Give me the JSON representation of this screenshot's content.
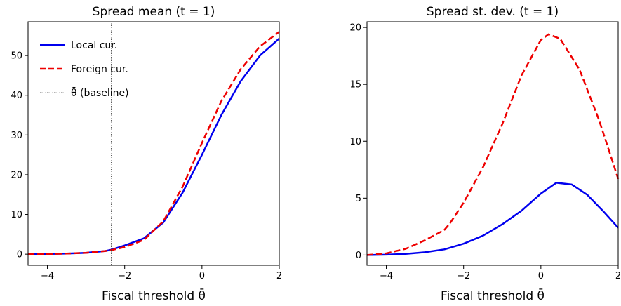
{
  "chart_data": [
    {
      "type": "line",
      "title": "Spread mean (t = 1)",
      "xlabel": "Fiscal threshold θ̄",
      "ylabel": "",
      "xlim": [
        -4.5,
        2.0
      ],
      "ylim": [
        -2.8,
        58.5
      ],
      "xticks": [
        -4,
        -2,
        0,
        2
      ],
      "xtick_labels": [
        "−4",
        "−2",
        "0",
        "2"
      ],
      "yticks": [
        0,
        10,
        20,
        30,
        40,
        50
      ],
      "ytick_labels": [
        "0",
        "10",
        "20",
        "30",
        "40",
        "50"
      ],
      "vline": -2.35,
      "legend": {
        "placement": "upper-left",
        "entries": [
          "Local cur.",
          "Foreign cur.",
          "θ̄ (baseline)"
        ]
      },
      "series": [
        {
          "name": "Local cur.",
          "color": "#0000ee",
          "style": "solid",
          "x": [
            -4.5,
            -4.0,
            -3.5,
            -3.0,
            -2.5,
            -2.35,
            -2.0,
            -1.5,
            -1.0,
            -0.5,
            0.0,
            0.5,
            1.0,
            1.5,
            2.0
          ],
          "y": [
            0.0,
            0.05,
            0.15,
            0.35,
            0.8,
            1.1,
            2.2,
            4.0,
            8.0,
            15.5,
            25.0,
            35.0,
            43.5,
            50.0,
            54.3
          ]
        },
        {
          "name": "Foreign cur.",
          "color": "#ee0000",
          "style": "dashed",
          "x": [
            -4.5,
            -4.0,
            -3.5,
            -3.0,
            -2.5,
            -2.35,
            -2.0,
            -1.5,
            -1.0,
            -0.5,
            0.0,
            0.5,
            1.0,
            1.5,
            2.0
          ],
          "y": [
            0.0,
            0.05,
            0.15,
            0.35,
            0.8,
            1.0,
            1.8,
            3.6,
            8.3,
            17.0,
            28.0,
            38.5,
            46.5,
            52.3,
            56.0
          ]
        }
      ]
    },
    {
      "type": "line",
      "title": "Spread st. dev. (t = 1)",
      "xlabel": "Fiscal threshold θ̄",
      "ylabel": "",
      "xlim": [
        -4.5,
        2.0
      ],
      "ylim": [
        -0.9,
        20.5
      ],
      "xticks": [
        -4,
        -2,
        0,
        2
      ],
      "xtick_labels": [
        "−4",
        "−2",
        "0",
        "2"
      ],
      "yticks": [
        0,
        5,
        10,
        15,
        20
      ],
      "ytick_labels": [
        "0",
        "5",
        "10",
        "15",
        "20"
      ],
      "vline": -2.35,
      "series": [
        {
          "name": "Local cur.",
          "color": "#0000ee",
          "style": "solid",
          "x": [
            -4.5,
            -4.0,
            -3.5,
            -3.0,
            -2.5,
            -2.35,
            -2.0,
            -1.5,
            -1.0,
            -0.5,
            0.0,
            0.4,
            0.8,
            1.2,
            1.6,
            2.0
          ],
          "y": [
            0.0,
            0.03,
            0.1,
            0.25,
            0.5,
            0.65,
            1.0,
            1.7,
            2.7,
            3.9,
            5.4,
            6.35,
            6.2,
            5.3,
            3.9,
            2.4
          ]
        },
        {
          "name": "Foreign cur.",
          "color": "#ee0000",
          "style": "dashed",
          "x": [
            -4.5,
            -4.0,
            -3.5,
            -3.0,
            -2.5,
            -2.35,
            -2.0,
            -1.5,
            -1.0,
            -0.5,
            0.0,
            0.2,
            0.5,
            1.0,
            1.5,
            2.0
          ],
          "y": [
            0.0,
            0.15,
            0.55,
            1.3,
            2.2,
            2.8,
            4.6,
            7.7,
            11.5,
            15.8,
            18.9,
            19.4,
            19.0,
            16.3,
            11.9,
            6.7
          ]
        }
      ]
    }
  ]
}
